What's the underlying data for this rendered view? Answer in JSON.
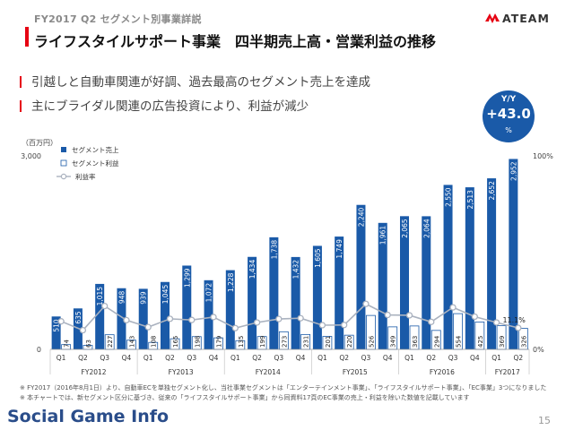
{
  "header": {
    "label": "FY2017 Q2 セグメント別事業詳説",
    "title": "ライフスタイルサポート事業　四半期売上高・営業利益の推移",
    "logo_text": "ATEAM"
  },
  "bullets": [
    "引越しと自動車関連が好調、過去最高のセグメント売上を達成",
    "主にブライダル関連の広告投資により、利益が減少"
  ],
  "yy_badge": {
    "label": "Y/Y",
    "value": "+43.0",
    "unit": "%"
  },
  "chart_data": {
    "type": "bar",
    "unit_label": "（百万円）",
    "left_axis": {
      "ticks": [
        "3,000",
        "0"
      ],
      "ylim": [
        0,
        3000
      ]
    },
    "right_axis": {
      "ticks": [
        "100%",
        "0%"
      ],
      "ylim": [
        0,
        100
      ]
    },
    "legend": [
      "セグメント売上",
      "セグメント利益",
      "利益率"
    ],
    "quarters": [
      "Q1",
      "Q2",
      "Q3",
      "Q4",
      "Q1",
      "Q2",
      "Q3",
      "Q4",
      "Q1",
      "Q2",
      "Q3",
      "Q4",
      "Q1",
      "Q2",
      "Q3",
      "Q4",
      "Q1",
      "Q2",
      "Q3",
      "Q4",
      "Q1",
      "Q2"
    ],
    "fiscal_years": [
      {
        "label": "FY2012",
        "start": 0,
        "count": 4
      },
      {
        "label": "FY2013",
        "start": 4,
        "count": 4
      },
      {
        "label": "FY2014",
        "start": 8,
        "count": 4
      },
      {
        "label": "FY2015",
        "start": 12,
        "count": 4
      },
      {
        "label": "FY2016",
        "start": 16,
        "count": 4
      },
      {
        "label": "FY2017",
        "start": 20,
        "count": 2
      }
    ],
    "series": [
      {
        "name": "セグメント売上",
        "values": [
          510,
          635,
          1015,
          948,
          939,
          1045,
          1299,
          1072,
          1228,
          1434,
          1738,
          1432,
          1605,
          1749,
          2240,
          1961,
          2065,
          2064,
          2550,
          2513,
          2652,
          2952
        ]
      },
      {
        "name": "セグメント利益",
        "values": [
          74,
          63,
          227,
          143,
          108,
          165,
          198,
          179,
          135,
          199,
          273,
          231,
          201,
          220,
          526,
          349,
          363,
          294,
          554,
          425,
          369,
          326
        ]
      },
      {
        "name": "利益率",
        "values": [
          14.5,
          9.9,
          22.4,
          15.1,
          11.5,
          15.8,
          15.2,
          16.7,
          11.0,
          13.9,
          15.7,
          16.1,
          12.5,
          12.6,
          23.5,
          17.8,
          17.6,
          14.2,
          21.7,
          16.9,
          13.9,
          11.1
        ]
      }
    ],
    "annotation": "11.1%"
  },
  "footnotes": [
    "※ FY2017（2016年8月1日）より、自動車ECを単独セグメント化し、当社事業セグメントは「エンターテインメント事業」、「ライフスタイルサポート事業」、「EC事業」3つになりました",
    "※ 本チャートでは、新セグメント区分に基づき、従来の「ライフスタイルサポート事業」から同資料17頁のEC事業の売上・利益を除いた数値を記載しています"
  ],
  "footer": {
    "brand": "Social Game Info",
    "page_number": "15"
  },
  "colors": {
    "accent": "#e60012",
    "bar": "#1a5aa8",
    "line": "#aab2bf",
    "badge": "#1a5aa8"
  }
}
